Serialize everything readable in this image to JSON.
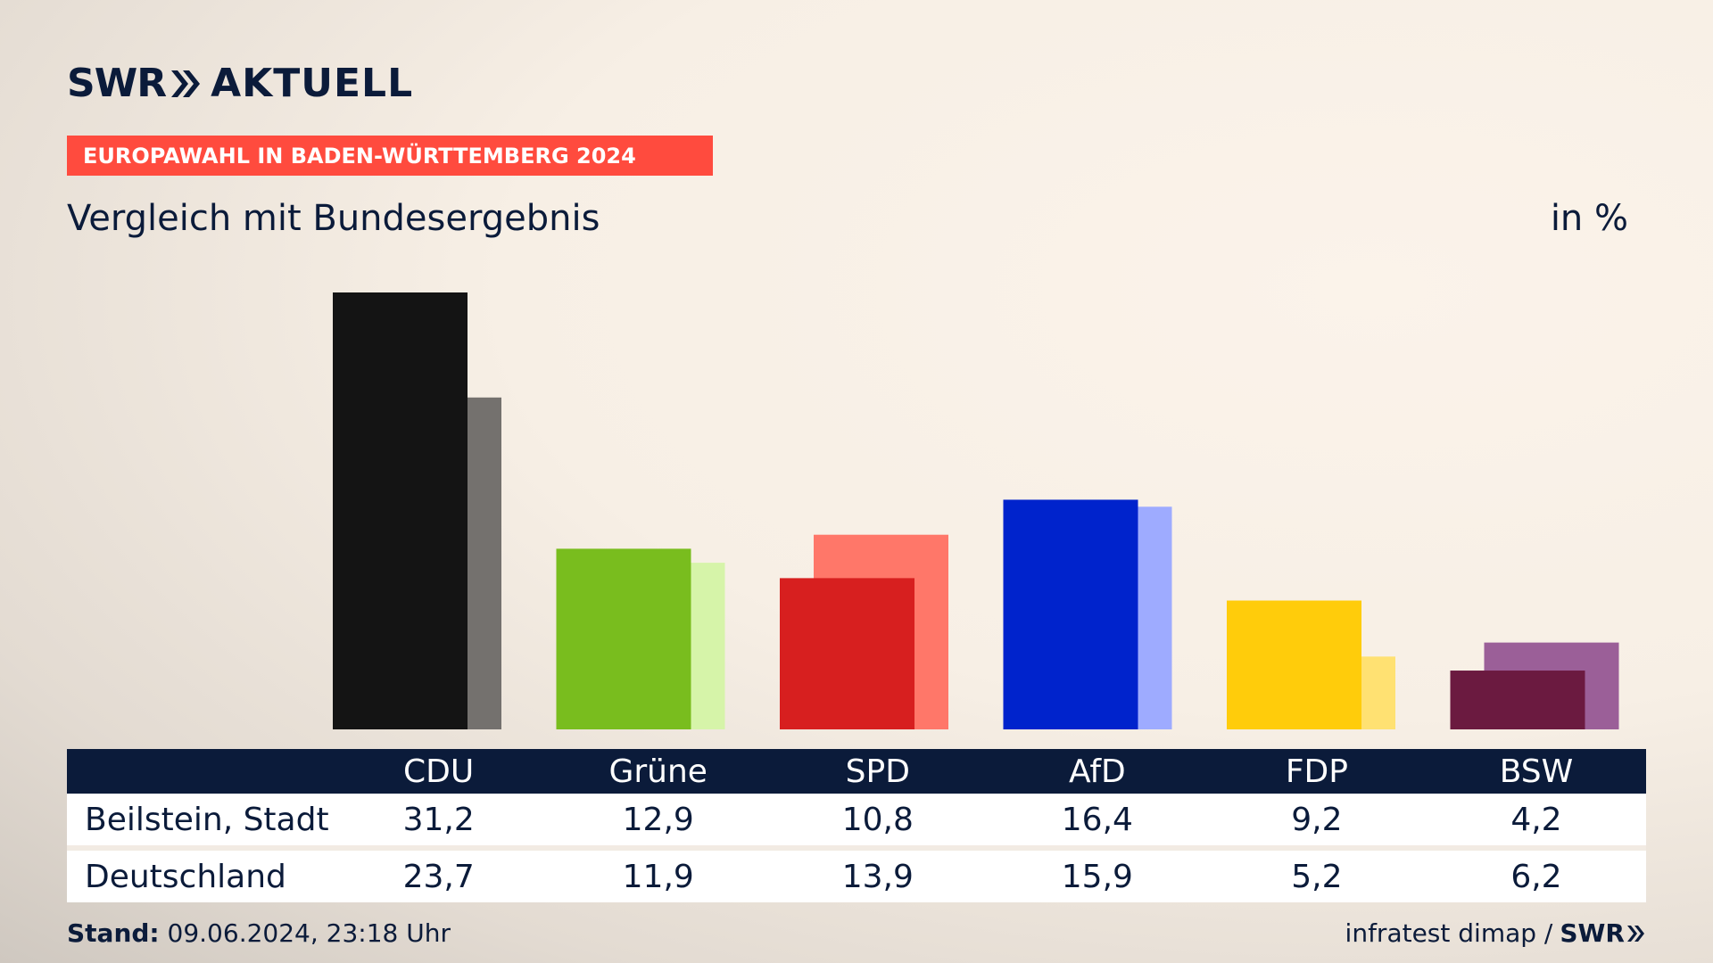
{
  "header": {
    "logo_mark": "SWR",
    "logo_text": "AKTUELL",
    "banner": "EUROPAWAHL IN BADEN-WÜRTTEMBERG 2024",
    "subtitle": "Vergleich mit Bundesergebnis",
    "unit": "in %"
  },
  "chart_data": {
    "type": "bar",
    "categories": [
      "CDU",
      "Grüne",
      "SPD",
      "AfD",
      "FDP",
      "BSW"
    ],
    "series": [
      {
        "name": "Beilstein, Stadt",
        "values": [
          31.2,
          12.9,
          10.8,
          16.4,
          9.2,
          4.2
        ]
      },
      {
        "name": "Deutschland",
        "values": [
          23.7,
          11.9,
          13.9,
          15.9,
          5.2,
          6.2
        ]
      }
    ],
    "colors_primary": [
      "#141414",
      "#79bd1e",
      "#d71f1f",
      "#0023cc",
      "#ffcc0b",
      "#6b1a40"
    ],
    "colors_secondary": [
      "#74716e",
      "#d6f4a9",
      "#ff7769",
      "#9eabff",
      "#ffe172",
      "#9b5f98"
    ],
    "ylim": [
      0,
      31.2
    ]
  },
  "table": {
    "rows": [
      {
        "label": "Beilstein, Stadt",
        "values": [
          "31,2",
          "12,9",
          "10,8",
          "16,4",
          "9,2",
          "4,2"
        ]
      },
      {
        "label": "Deutschland",
        "values": [
          "23,7",
          "11,9",
          "13,9",
          "15,9",
          "5,2",
          "6,2"
        ]
      }
    ]
  },
  "footer": {
    "stand_label": "Stand:",
    "stand_value": "09.06.2024, 23:18 Uhr",
    "source": "infratest dimap /",
    "brand": "SWR"
  }
}
